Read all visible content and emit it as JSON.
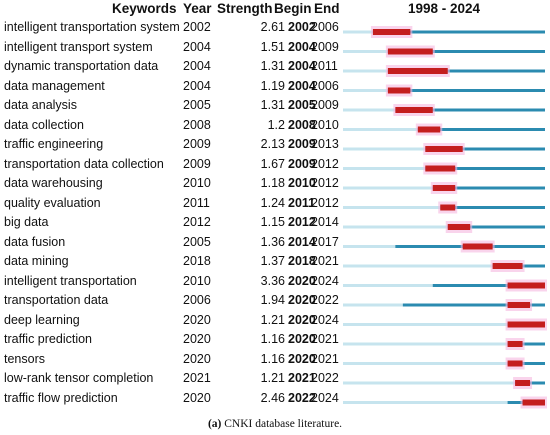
{
  "headers": {
    "keywords": "Keywords",
    "year": "Year",
    "strength": "Strength",
    "begin": "Begin",
    "end": "End",
    "range": "1998 - 2024"
  },
  "caption_label": "(a)",
  "caption_text": "CNKI database literature.",
  "colors": {
    "pre": "#c6e4ee",
    "active": "#2b8bb0",
    "burst": "#c41e1e",
    "halo": "#f5b8e0"
  },
  "chart_data": {
    "type": "table",
    "timeline_start": 1998,
    "timeline_end": 2024,
    "columns": [
      "Keywords",
      "Year",
      "Strength",
      "Begin",
      "End"
    ],
    "rows": [
      {
        "keyword": "intelligent transportation system",
        "year": 2002,
        "strength": "2.61",
        "begin": 2002,
        "end": 2006
      },
      {
        "keyword": "intelligent transport system",
        "year": 2004,
        "strength": "1.51",
        "begin": 2004,
        "end": 2009
      },
      {
        "keyword": "dynamic transportation data",
        "year": 2004,
        "strength": "1.31",
        "begin": 2004,
        "end": 2011
      },
      {
        "keyword": "data management",
        "year": 2004,
        "strength": "1.19",
        "begin": 2004,
        "end": 2006
      },
      {
        "keyword": "data analysis",
        "year": 2005,
        "strength": "1.31",
        "begin": 2005,
        "end": 2009
      },
      {
        "keyword": "data collection",
        "year": 2008,
        "strength": "1.2",
        "begin": 2008,
        "end": 2010
      },
      {
        "keyword": "traffic engineering",
        "year": 2009,
        "strength": "2.13",
        "begin": 2009,
        "end": 2013
      },
      {
        "keyword": "transportation data collection",
        "year": 2009,
        "strength": "1.67",
        "begin": 2009,
        "end": 2012
      },
      {
        "keyword": "data warehousing",
        "year": 2010,
        "strength": "1.18",
        "begin": 2010,
        "end": 2012
      },
      {
        "keyword": "quality evaluation",
        "year": 2011,
        "strength": "1.24",
        "begin": 2011,
        "end": 2012
      },
      {
        "keyword": "big data",
        "year": 2012,
        "strength": "1.15",
        "begin": 2012,
        "end": 2014
      },
      {
        "keyword": "data fusion",
        "year": 2005,
        "strength": "1.36",
        "begin": 2014,
        "end": 2017
      },
      {
        "keyword": "data mining",
        "year": 2018,
        "strength": "1.37",
        "begin": 2018,
        "end": 2021
      },
      {
        "keyword": "intelligent transportation",
        "year": 2010,
        "strength": "3.36",
        "begin": 2020,
        "end": 2024
      },
      {
        "keyword": "transportation data",
        "year": 2006,
        "strength": "1.94",
        "begin": 2020,
        "end": 2022
      },
      {
        "keyword": "deep learning",
        "year": 2020,
        "strength": "1.21",
        "begin": 2020,
        "end": 2024
      },
      {
        "keyword": "traffic prediction",
        "year": 2020,
        "strength": "1.16",
        "begin": 2020,
        "end": 2021
      },
      {
        "keyword": "tensors",
        "year": 2020,
        "strength": "1.16",
        "begin": 2020,
        "end": 2021
      },
      {
        "keyword": "low-rank tensor completion",
        "year": 2021,
        "strength": "1.21",
        "begin": 2021,
        "end": 2022
      },
      {
        "keyword": "traffic flow prediction",
        "year": 2020,
        "strength": "2.46",
        "begin": 2022,
        "end": 2024
      }
    ]
  }
}
